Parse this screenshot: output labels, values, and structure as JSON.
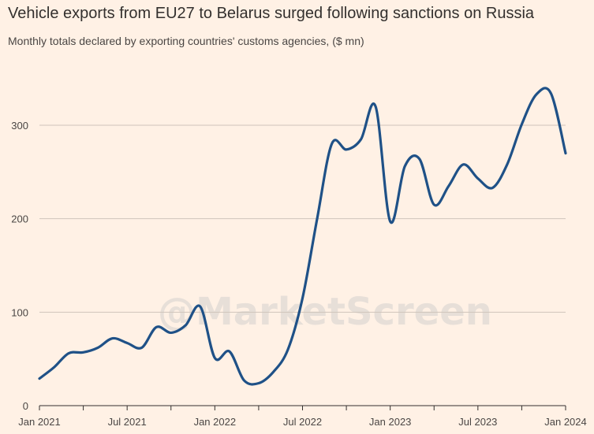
{
  "title": "Vehicle exports from EU27 to Belarus surged following sanctions on Russia",
  "subtitle": "Monthly totals declared by exporting countries' customs agencies, ($ mn)",
  "watermark": "@MarketScreen",
  "colors": {
    "background": "#fff1e5",
    "line": "#1f5187",
    "grid": "#cfc4bb",
    "axis": "#33302e"
  },
  "chart_data": {
    "type": "line",
    "title": "Vehicle exports from EU27 to Belarus surged following sanctions on Russia",
    "subtitle": "Monthly totals declared by exporting countries' customs agencies, ($ mn)",
    "xlabel": "",
    "ylabel": "",
    "ylim": [
      0,
      350
    ],
    "y_ticks": [
      0,
      100,
      200,
      300
    ],
    "x_ticks": [
      "Jan 2021",
      "Jul 2021",
      "Jan 2022",
      "Jul 2022",
      "Jan 2023",
      "Jul 2023",
      "Jan 2024"
    ],
    "grid": "horizontal",
    "series": [
      {
        "x": [
          "2021-01",
          "2021-02",
          "2021-03",
          "2021-04",
          "2021-05",
          "2021-06",
          "2021-07",
          "2021-08",
          "2021-09",
          "2021-10",
          "2021-11",
          "2021-12",
          "2022-01",
          "2022-02",
          "2022-03",
          "2022-04",
          "2022-05",
          "2022-06",
          "2022-07",
          "2022-08",
          "2022-09",
          "2022-10",
          "2022-11",
          "2022-12",
          "2023-01",
          "2023-02",
          "2023-03",
          "2023-04",
          "2023-05",
          "2023-06",
          "2023-07",
          "2023-08",
          "2023-09",
          "2023-10",
          "2023-11",
          "2023-12",
          "2024-01"
        ],
        "values": [
          29,
          41,
          56,
          57,
          62,
          72,
          67,
          62,
          84,
          78,
          86,
          106,
          51,
          58,
          27,
          24,
          36,
          60,
          115,
          200,
          280,
          274,
          285,
          320,
          197,
          256,
          264,
          215,
          235,
          258,
          243,
          233,
          258,
          301,
          333,
          334,
          270
        ]
      }
    ]
  }
}
